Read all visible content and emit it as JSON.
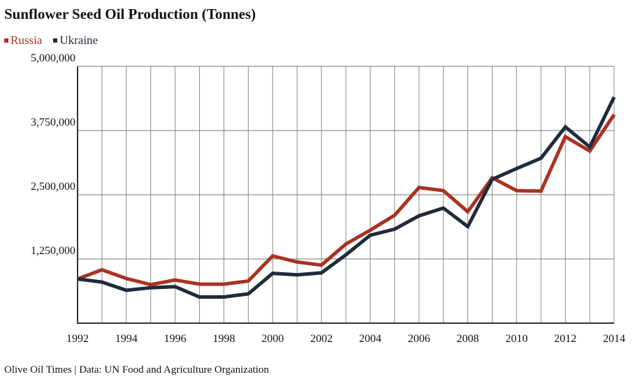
{
  "chart_data": {
    "type": "line",
    "title": "Sunflower Seed Oil Production (Tonnes)",
    "x": [
      1992,
      1993,
      1994,
      1995,
      1996,
      1997,
      1998,
      1999,
      2000,
      2001,
      2002,
      2003,
      2004,
      2005,
      2006,
      2007,
      2008,
      2009,
      2010,
      2011,
      2012,
      2013,
      2014
    ],
    "series": [
      {
        "name": "Russia",
        "color": "#a83223",
        "values": [
          860000,
          1040000,
          870000,
          750000,
          840000,
          760000,
          760000,
          820000,
          1310000,
          1190000,
          1130000,
          1540000,
          1810000,
          2100000,
          2640000,
          2580000,
          2170000,
          2830000,
          2580000,
          2570000,
          3630000,
          3350000,
          4060000
        ]
      },
      {
        "name": "Ukraine",
        "color": "#1f2b3a",
        "values": [
          860000,
          800000,
          640000,
          690000,
          710000,
          510000,
          510000,
          570000,
          970000,
          940000,
          980000,
          1330000,
          1710000,
          1830000,
          2090000,
          2240000,
          1880000,
          2800000,
          3010000,
          3210000,
          3820000,
          3430000,
          4400000
        ]
      }
    ],
    "ylim": [
      0,
      5000000
    ],
    "xlim": [
      1992,
      2014
    ],
    "y_ticks": [
      "1,250,000",
      "2,500,000",
      "3,750,000",
      "5,000,000"
    ],
    "y_tick_values": [
      1250000,
      2500000,
      3750000,
      5000000
    ],
    "x_ticks": [
      "1992",
      "1994",
      "1996",
      "1998",
      "2000",
      "2002",
      "2004",
      "2006",
      "2008",
      "2010",
      "2012",
      "2014"
    ],
    "grid": true,
    "legend": "top-left",
    "xlabel": "",
    "ylabel": ""
  },
  "footer": "Olive Oil Times | Data: UN Food and Agriculture Organization"
}
